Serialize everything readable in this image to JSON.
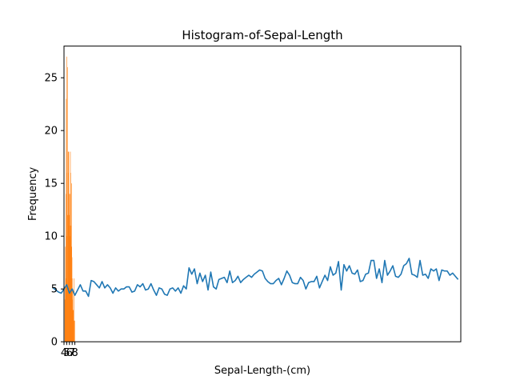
{
  "chart_data": {
    "type": "bar",
    "title": "Histogram-of-Sepal-Length",
    "xlabel": "Sepal-Length-(cm)",
    "ylabel": "Frequency",
    "xlim": [
      4.0,
      150.0
    ],
    "ylim": [
      0,
      28
    ],
    "x_ticks": [
      4,
      5,
      6,
      7,
      8
    ],
    "x_tick_labels": [
      "4",
      "5",
      "6",
      "7",
      "8"
    ],
    "y_ticks": [
      0,
      5,
      10,
      15,
      20,
      25
    ],
    "y_tick_labels": [
      "0",
      "5",
      "10",
      "15",
      "20",
      "25"
    ],
    "grid": false,
    "bar_color": "#ff7f0e",
    "line_color": "#1f77b4",
    "histogram": {
      "x": [
        4.3,
        4.4,
        4.5,
        4.6,
        4.7,
        4.8,
        4.9,
        5.0,
        5.1,
        5.2,
        5.3,
        5.4,
        5.5,
        5.6,
        5.7,
        5.8,
        5.9,
        6.0,
        6.1,
        6.2,
        6.3,
        6.4,
        6.5,
        6.6,
        6.7,
        6.8,
        6.9,
        7.0,
        7.1,
        7.2,
        7.3,
        7.4,
        7.6,
        7.7,
        7.9
      ],
      "values": [
        4,
        5,
        9,
        6,
        14,
        23,
        10,
        27,
        16,
        26,
        5,
        12,
        18,
        16,
        18,
        14,
        11,
        12,
        14,
        10,
        18,
        16,
        11,
        6,
        15,
        9,
        8,
        6,
        4,
        5,
        3,
        3,
        2,
        6,
        2
      ]
    },
    "line_series": {
      "values": [
        5.1,
        4.9,
        4.7,
        4.6,
        5.0,
        5.4,
        4.6,
        5.0,
        4.4,
        4.9,
        5.4,
        4.8,
        4.8,
        4.3,
        5.8,
        5.7,
        5.4,
        5.1,
        5.7,
        5.1,
        5.4,
        5.1,
        4.6,
        5.1,
        4.8,
        5.0,
        5.0,
        5.2,
        5.2,
        4.7,
        4.8,
        5.4,
        5.2,
        5.5,
        4.9,
        5.0,
        5.5,
        4.9,
        4.4,
        5.1,
        5.0,
        4.5,
        4.4,
        5.0,
        5.1,
        4.8,
        5.1,
        4.6,
        5.3,
        5.0,
        7.0,
        6.4,
        6.9,
        5.5,
        6.5,
        5.7,
        6.3,
        4.9,
        6.6,
        5.2,
        5.0,
        5.9,
        6.0,
        6.1,
        5.6,
        6.7,
        5.6,
        5.8,
        6.2,
        5.6,
        5.9,
        6.1,
        6.3,
        6.1,
        6.4,
        6.6,
        6.8,
        6.7,
        6.0,
        5.7,
        5.5,
        5.5,
        5.8,
        6.0,
        5.4,
        6.0,
        6.7,
        6.3,
        5.6,
        5.5,
        5.5,
        6.1,
        5.8,
        5.0,
        5.6,
        5.7,
        5.7,
        6.2,
        5.1,
        5.7,
        6.3,
        5.8,
        7.1,
        6.3,
        6.5,
        7.6,
        4.9,
        7.3,
        6.7,
        7.2,
        6.5,
        6.4,
        6.8,
        5.7,
        5.8,
        6.4,
        6.5,
        7.7,
        7.7,
        6.0,
        6.9,
        5.6,
        7.7,
        6.3,
        6.7,
        7.2,
        6.2,
        6.1,
        6.4,
        7.2,
        7.4,
        7.9,
        6.4,
        6.3,
        6.1,
        7.7,
        6.3,
        6.4,
        6.0,
        6.9,
        6.7,
        6.9,
        5.8,
        6.8,
        6.7,
        6.7,
        6.3,
        6.5,
        6.2,
        5.9
      ]
    }
  }
}
